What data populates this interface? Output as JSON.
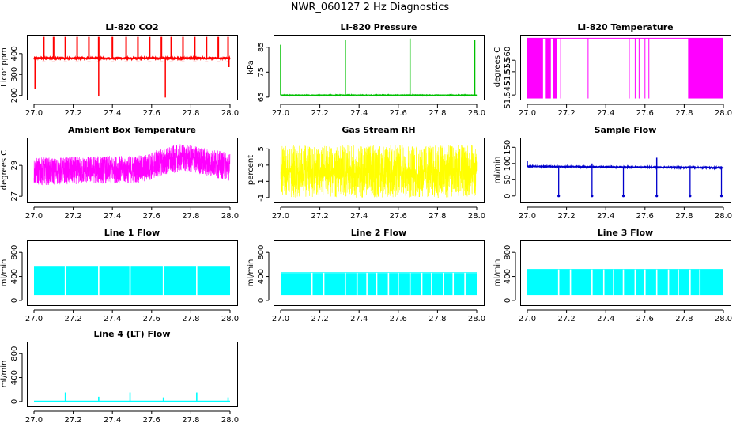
{
  "title": "NWR_060127  2 Hz Diagnostics",
  "chart_data": [
    {
      "id": "co2",
      "type": "line",
      "title": "Li-820 CO2",
      "ylabel": "Licor ppm",
      "color": "#ff0000",
      "xlim": [
        27.0,
        28.0
      ],
      "ylim": [
        180,
        490
      ],
      "xticks": [
        "27.0",
        "27.2",
        "27.4",
        "27.6",
        "27.8",
        "28.0"
      ],
      "yticks": [
        200,
        300,
        400
      ],
      "series": {
        "model": "co2",
        "base": 378,
        "noise": 6,
        "spikes_up": [
          27.05,
          27.1,
          27.16,
          27.22,
          27.28,
          27.33,
          27.4,
          27.47,
          27.53,
          27.59,
          27.65,
          27.7,
          27.76,
          27.82,
          27.88,
          27.94,
          27.99
        ],
        "spikes_down": [
          [
            27.005,
            230
          ],
          [
            27.33,
            195
          ],
          [
            27.67,
            190
          ],
          [
            27.995,
            335
          ]
        ]
      }
    },
    {
      "id": "pressure",
      "type": "line",
      "title": "Li-820 Pressure",
      "ylabel": "kPa",
      "color": "#00c000",
      "xlim": [
        27.0,
        28.0
      ],
      "ylim": [
        64,
        90
      ],
      "xticks": [
        "27.0",
        "27.2",
        "27.4",
        "27.6",
        "27.8",
        "28.0"
      ],
      "yticks": [
        65,
        75,
        85
      ],
      "series": {
        "model": "pressure",
        "base": 65.8,
        "noise": 0.25,
        "spikes_up": [
          [
            27.0,
            86
          ],
          [
            27.33,
            88
          ],
          [
            27.66,
            88.5
          ],
          [
            27.99,
            88
          ]
        ]
      }
    },
    {
      "id": "li_temp",
      "type": "line",
      "title": "Li-820 Temperature",
      "ylabel": "degrees C",
      "color": "#ff00ff",
      "xlim": [
        27.0,
        28.0
      ],
      "ylim": [
        51.543,
        51.571
      ],
      "xticks": [
        "27.0",
        "27.2",
        "27.4",
        "27.6",
        "27.8",
        "28.0"
      ],
      "yticks": [
        "51.545",
        "51.555",
        "51.560"
      ],
      "series": {
        "model": "binary",
        "low": 51.5435,
        "high": 51.5695,
        "dense": [
          [
            27.0,
            27.08
          ],
          [
            27.09,
            27.12
          ],
          [
            27.13,
            27.15
          ],
          [
            27.82,
            28.0
          ]
        ],
        "sparse": [
          27.17,
          27.31,
          27.52,
          27.55,
          27.57,
          27.6,
          27.62
        ]
      }
    },
    {
      "id": "ambient",
      "type": "line",
      "title": "Ambient Box Temperature",
      "ylabel": "degrees C",
      "color": "#ff00ff",
      "xlim": [
        27.0,
        28.0
      ],
      "ylim": [
        26.6,
        30.8
      ],
      "xticks": [
        "27.0",
        "27.2",
        "27.4",
        "27.6",
        "27.8",
        "28.0"
      ],
      "yticks": [
        27,
        29
      ],
      "series": {
        "model": "ambient",
        "amp": 0.9,
        "trend": [
          [
            27.0,
            28.6
          ],
          [
            27.3,
            28.7
          ],
          [
            27.55,
            28.75
          ],
          [
            27.65,
            29.2
          ],
          [
            27.75,
            29.5
          ],
          [
            27.85,
            29.3
          ],
          [
            28.0,
            28.9
          ]
        ]
      }
    },
    {
      "id": "rh",
      "type": "line",
      "title": "Gas Stream RH",
      "ylabel": "percent",
      "color": "#ffff00",
      "xlim": [
        27.0,
        28.0
      ],
      "ylim": [
        -1.6,
        6.4
      ],
      "xticks": [
        "27.0",
        "27.2",
        "27.4",
        "27.6",
        "27.8",
        "28.0"
      ],
      "yticks": [
        -1,
        1,
        3,
        5
      ],
      "series": {
        "model": "noise",
        "low": -1.0,
        "high": 5.5,
        "bias": 1.4
      }
    },
    {
      "id": "sample",
      "type": "line",
      "title": "Sample Flow",
      "ylabel": "ml/min",
      "color": "#0000cc",
      "xlim": [
        27.0,
        28.0
      ],
      "ylim": [
        -20,
        180
      ],
      "xticks": [
        "27.0",
        "27.2",
        "27.4",
        "27.6",
        "27.8",
        "28.0"
      ],
      "yticks": [
        0,
        50,
        100,
        150
      ],
      "series": {
        "model": "sample",
        "base": 91,
        "noise": 1.5,
        "drops": [
          27.16,
          27.33,
          27.49,
          27.66,
          27.83,
          27.99
        ],
        "blips": [
          [
            27.0,
            108
          ],
          [
            27.66,
            118
          ],
          [
            27.33,
            100
          ]
        ]
      }
    },
    {
      "id": "line1",
      "type": "line",
      "title": "Line 1 Flow",
      "ylabel": "ml/min",
      "color": "#00ffff",
      "xlim": [
        27.0,
        28.0
      ],
      "ylim": [
        -80,
        1000
      ],
      "xticks": [
        "27.0",
        "27.2",
        "27.4",
        "27.6",
        "27.8",
        "28.0"
      ],
      "yticks": [
        0,
        400,
        800
      ],
      "series": {
        "model": "band",
        "low": 90,
        "high": 560,
        "gaps": [
          27.16,
          27.33,
          27.49,
          27.66,
          27.83
        ]
      }
    },
    {
      "id": "line2",
      "type": "line",
      "title": "Line 2 Flow",
      "ylabel": "ml/min",
      "color": "#00ffff",
      "xlim": [
        27.0,
        28.0
      ],
      "ylim": [
        -80,
        1000
      ],
      "xticks": [
        "27.0",
        "27.2",
        "27.4",
        "27.6",
        "27.8",
        "28.0"
      ],
      "yticks": [
        0,
        400,
        800
      ],
      "series": {
        "model": "band",
        "low": 90,
        "high": 455,
        "gaps": [
          27.16,
          27.22,
          27.33,
          27.39,
          27.44,
          27.49,
          27.55,
          27.6,
          27.66,
          27.72,
          27.77,
          27.83,
          27.88,
          27.94
        ]
      }
    },
    {
      "id": "line3",
      "type": "line",
      "title": "Line 3 Flow",
      "ylabel": "ml/min",
      "color": "#00ffff",
      "xlim": [
        27.0,
        28.0
      ],
      "ylim": [
        -80,
        1000
      ],
      "xticks": [
        "27.0",
        "27.2",
        "27.4",
        "27.6",
        "27.8",
        "28.0"
      ],
      "yticks": [
        0,
        400,
        800
      ],
      "series": {
        "model": "band",
        "low": 90,
        "high": 510,
        "gaps": [
          27.16,
          27.22,
          27.33,
          27.39,
          27.44,
          27.49,
          27.55,
          27.6,
          27.66,
          27.72,
          27.77,
          27.83,
          27.88
        ]
      }
    },
    {
      "id": "line4",
      "type": "line",
      "title": "Line 4 (LT) Flow",
      "ylabel": "ml/min",
      "color": "#00ffff",
      "xlim": [
        27.0,
        28.0
      ],
      "ylim": [
        -80,
        1000
      ],
      "xticks": [
        "27.0",
        "27.2",
        "27.4",
        "27.6",
        "27.8",
        "28.0"
      ],
      "yticks": [
        0,
        400,
        800
      ],
      "series": {
        "model": "flat",
        "base": 5,
        "spikes": [
          [
            27.16,
            150
          ],
          [
            27.33,
            80
          ],
          [
            27.49,
            150
          ],
          [
            27.66,
            70
          ],
          [
            27.83,
            150
          ],
          [
            27.99,
            70
          ]
        ]
      }
    }
  ]
}
